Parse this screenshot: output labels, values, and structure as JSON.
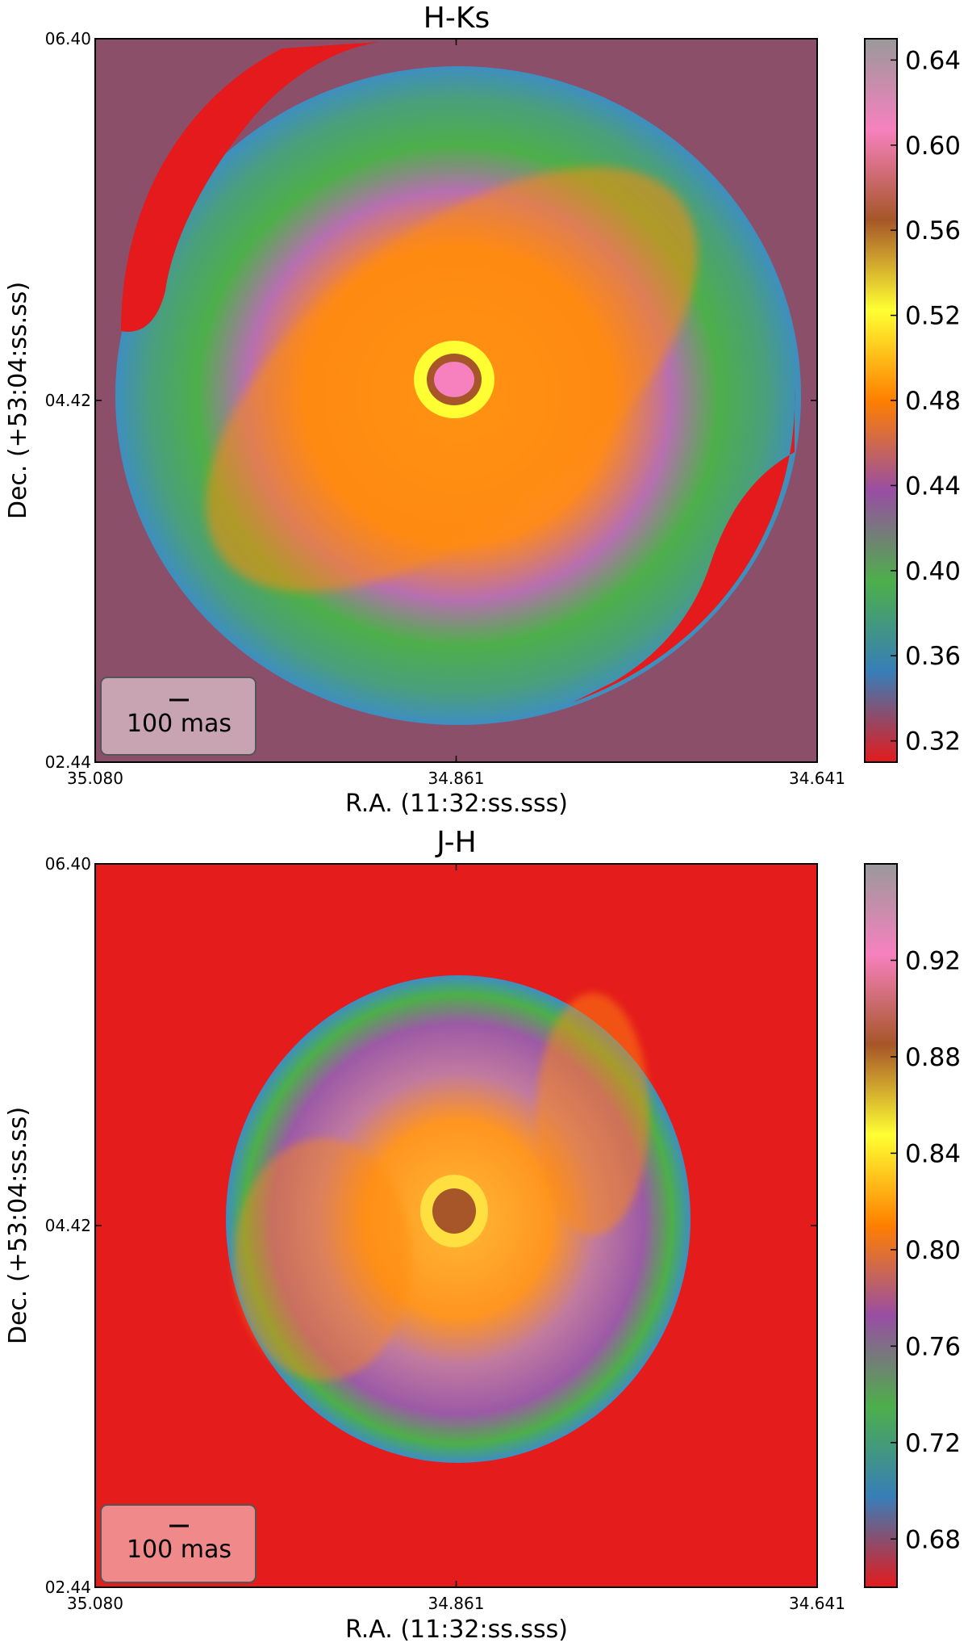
{
  "chart_data": [
    {
      "type": "heatmap",
      "title": "H-Ks",
      "xlabel": "R.A. (11:32:ss.sss)",
      "ylabel": "Dec. (+53:04:ss.ss)",
      "x_ticks": [
        "35.080",
        "34.861",
        "34.641"
      ],
      "y_ticks": [
        "06.40",
        "04.42",
        "02.44"
      ],
      "colorbar": {
        "ticks": [
          "0.32",
          "0.36",
          "0.40",
          "0.44",
          "0.48",
          "0.52",
          "0.56",
          "0.60",
          "0.64"
        ],
        "range": [
          0.31,
          0.65
        ]
      },
      "scalebar_label": "100 mas",
      "background_color": "#8c4f69",
      "scalebar_box_color": "#c8a3b2"
    },
    {
      "type": "heatmap",
      "title": "J-H",
      "xlabel": "R.A. (11:32:ss.sss)",
      "ylabel": "Dec. (+53:04:ss.ss)",
      "x_ticks": [
        "35.080",
        "34.861",
        "34.641"
      ],
      "y_ticks": [
        "06.40",
        "04.42",
        "02.44"
      ],
      "colorbar": {
        "ticks": [
          "0.68",
          "0.72",
          "0.76",
          "0.80",
          "0.84",
          "0.88",
          "0.92"
        ],
        "range": [
          0.66,
          0.96
        ]
      },
      "scalebar_label": "100 mas",
      "background_color": "#e41c1c",
      "scalebar_box_color": "#f08a8a"
    }
  ],
  "colormap": [
    "#e41a1c",
    "#377eb8",
    "#4daf4a",
    "#984ea3",
    "#ff7f00",
    "#ffff33",
    "#a65628",
    "#f781bf",
    "#999999"
  ]
}
